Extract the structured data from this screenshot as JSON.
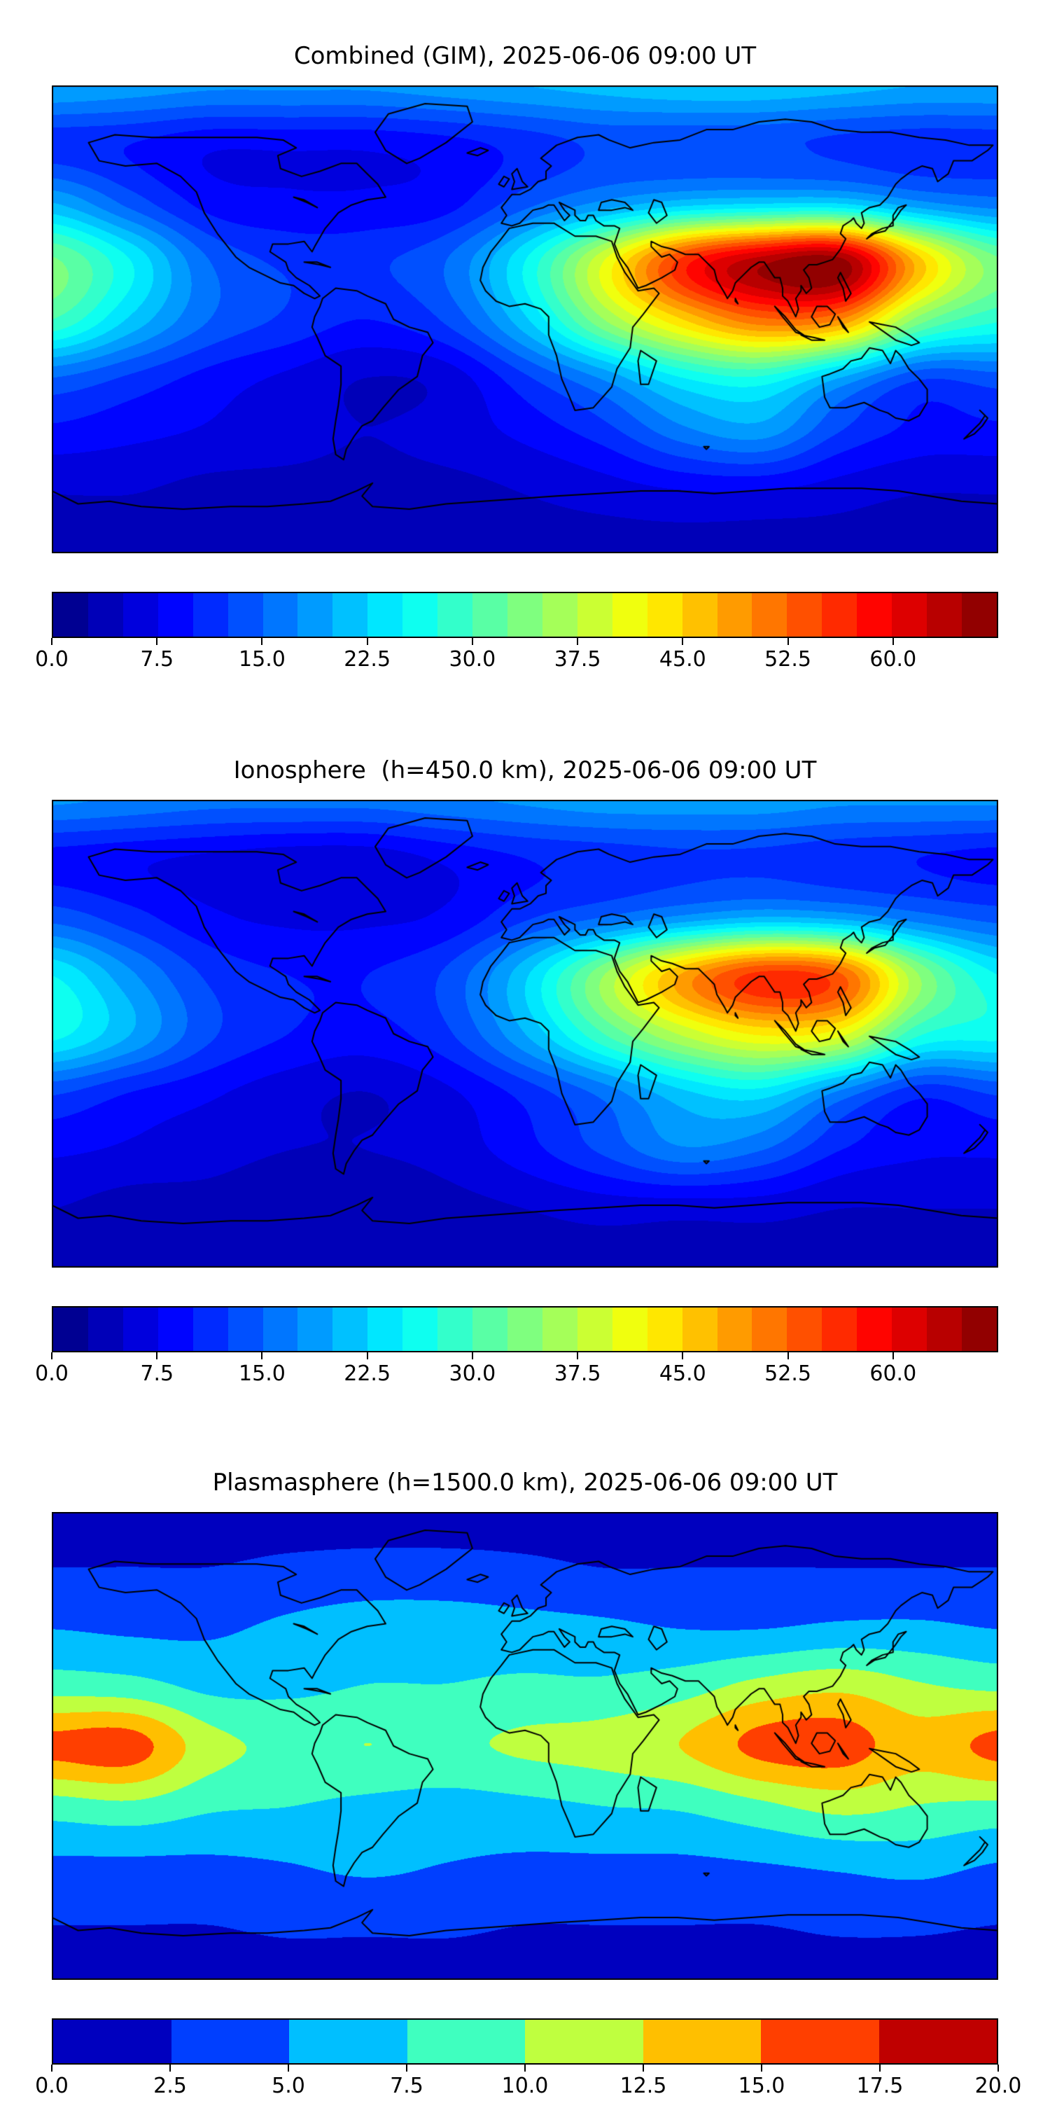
{
  "figure": {
    "background": "#ffffff",
    "colormap": "jet",
    "overlay": "coastlines"
  },
  "chart_data": [
    {
      "type": "heatmap",
      "title": "Combined (GIM), 2025-06-06 09:00 UT",
      "colormap": "jet",
      "extent": {
        "lon": [
          -180,
          180
        ],
        "lat": [
          -90,
          90
        ]
      },
      "levels": {
        "min": 0,
        "max": 67.5,
        "step": 2.5
      },
      "colorbar_ticks": [
        0.0,
        7.5,
        15.0,
        22.5,
        30.0,
        37.5,
        45.0,
        52.5,
        60.0
      ],
      "colorbar_tick_labels": [
        "0.0",
        "7.5",
        "15.0",
        "22.5",
        "30.0",
        "37.5",
        "45.0",
        "52.5",
        "60.0"
      ],
      "x_lon": [
        -180,
        -150,
        -120,
        -90,
        -60,
        -30,
        0,
        30,
        60,
        90,
        120,
        150,
        180
      ],
      "y_lat": [
        90,
        67.5,
        45,
        22.5,
        0,
        -22.5,
        -45,
        -67.5,
        -90
      ],
      "values": [
        [
          20,
          19,
          18,
          18,
          18,
          19,
          20,
          21,
          22,
          22,
          21,
          20,
          20
        ],
        [
          11,
          10,
          8,
          8,
          8,
          9,
          11,
          13,
          13,
          13,
          12,
          11,
          11
        ],
        [
          20,
          14,
          9,
          8,
          8,
          9,
          14,
          18,
          21,
          22,
          22,
          18,
          16
        ],
        [
          33,
          25,
          15,
          12,
          12,
          15,
          25,
          40,
          56,
          64,
          66,
          46,
          33
        ],
        [
          30,
          22,
          15,
          12,
          10,
          13,
          22,
          35,
          45,
          52,
          50,
          34,
          28
        ],
        [
          15,
          12,
          9,
          7,
          5,
          6,
          12,
          18,
          25,
          27,
          20,
          13,
          14
        ],
        [
          9,
          8,
          7,
          6,
          5,
          6,
          8,
          11,
          16,
          18,
          12,
          9,
          9
        ],
        [
          5,
          5,
          4,
          4,
          4,
          4,
          5,
          6,
          7,
          7,
          6,
          5,
          5
        ],
        [
          3,
          3,
          3,
          3,
          3,
          3,
          4,
          4,
          4,
          4,
          4,
          3,
          3
        ]
      ]
    },
    {
      "type": "heatmap",
      "title": "Ionosphere  (h=450.0 km), 2025-06-06 09:00 UT",
      "colormap": "jet",
      "extent": {
        "lon": [
          -180,
          180
        ],
        "lat": [
          -90,
          90
        ]
      },
      "levels": {
        "min": 0,
        "max": 67.5,
        "step": 2.5
      },
      "colorbar_ticks": [
        0.0,
        7.5,
        15.0,
        22.5,
        30.0,
        37.5,
        45.0,
        52.5,
        60.0
      ],
      "colorbar_tick_labels": [
        "0.0",
        "7.5",
        "15.0",
        "22.5",
        "30.0",
        "37.5",
        "45.0",
        "52.5",
        "60.0"
      ],
      "x_lon": [
        -180,
        -150,
        -120,
        -90,
        -60,
        -30,
        0,
        30,
        60,
        90,
        120,
        150,
        180
      ],
      "y_lat": [
        90,
        67.5,
        45,
        22.5,
        0,
        -22.5,
        -45,
        -67.5,
        -90
      ],
      "values": [
        [
          18,
          17,
          16,
          16,
          16,
          17,
          18,
          19,
          19,
          19,
          18,
          18,
          18
        ],
        [
          9,
          8,
          7,
          6,
          6,
          8,
          10,
          11,
          12,
          12,
          11,
          10,
          9
        ],
        [
          14,
          11,
          8,
          7,
          7,
          8,
          12,
          15,
          18,
          20,
          19,
          16,
          14
        ],
        [
          25,
          18,
          12,
          10,
          10,
          13,
          22,
          35,
          48,
          56,
          53,
          35,
          25
        ],
        [
          26,
          20,
          13,
          10,
          9,
          12,
          20,
          30,
          38,
          43,
          41,
          28,
          26
        ],
        [
          13,
          10,
          8,
          6,
          5,
          7,
          11,
          16,
          22,
          24,
          17,
          11,
          13
        ],
        [
          8,
          7,
          6,
          5,
          5,
          6,
          9,
          13,
          17,
          15,
          10,
          8,
          8
        ],
        [
          5,
          4,
          4,
          3,
          3,
          4,
          5,
          6,
          6,
          6,
          5,
          5,
          5
        ],
        [
          4,
          4,
          3,
          3,
          3,
          3,
          4,
          4,
          4,
          4,
          4,
          4,
          4
        ]
      ]
    },
    {
      "type": "heatmap",
      "title": "Plasmasphere (h=1500.0 km), 2025-06-06 09:00 UT",
      "colormap": "jet",
      "extent": {
        "lon": [
          -180,
          180
        ],
        "lat": [
          -90,
          90
        ]
      },
      "levels": {
        "min": 0,
        "max": 20,
        "step": 2.5
      },
      "colorbar_ticks": [
        0.0,
        2.5,
        5.0,
        7.5,
        10.0,
        12.5,
        15.0,
        17.5,
        20.0
      ],
      "colorbar_tick_labels": [
        "0.0",
        "2.5",
        "5.0",
        "7.5",
        "10.0",
        "12.5",
        "15.0",
        "17.5",
        "20.0"
      ],
      "x_lon": [
        -180,
        -150,
        -120,
        -90,
        -60,
        -30,
        0,
        30,
        60,
        90,
        120,
        150,
        180
      ],
      "y_lat": [
        90,
        67.5,
        45,
        22.5,
        0,
        -22.5,
        -45,
        -67.5,
        -90
      ],
      "values": [
        [
          1.5,
          1.5,
          1.5,
          1.5,
          1.5,
          1.5,
          1.5,
          1.5,
          1.5,
          1.5,
          1.5,
          1.5,
          1.5
        ],
        [
          2.6,
          2.6,
          2.6,
          3.1,
          3.4,
          3.4,
          3.1,
          2.6,
          2.6,
          2.6,
          2.6,
          2.6,
          2.6
        ],
        [
          5.0,
          4.6,
          4.6,
          5.6,
          6.4,
          6.4,
          6.0,
          5.6,
          5.0,
          5.0,
          5.6,
          5.6,
          5.0
        ],
        [
          9.0,
          8.6,
          7.0,
          7.0,
          7.6,
          7.6,
          8.0,
          8.0,
          9.0,
          11.0,
          12.0,
          10.4,
          9.6
        ],
        [
          15.8,
          16.2,
          11.0,
          9.6,
          10.0,
          9.6,
          10.4,
          11.0,
          12.6,
          15.8,
          16.2,
          13.6,
          15.8
        ],
        [
          9.0,
          9.6,
          8.0,
          7.6,
          7.0,
          6.6,
          7.0,
          7.6,
          8.0,
          9.6,
          11.0,
          10.0,
          9.6
        ],
        [
          4.6,
          4.6,
          4.6,
          5.0,
          5.6,
          5.0,
          4.6,
          4.6,
          4.6,
          5.0,
          5.6,
          6.0,
          5.0
        ],
        [
          2.6,
          2.6,
          2.6,
          3.0,
          3.0,
          3.0,
          2.6,
          2.6,
          2.6,
          2.6,
          3.0,
          3.0,
          2.6
        ],
        [
          1.6,
          1.6,
          1.6,
          1.6,
          1.6,
          1.6,
          1.6,
          1.6,
          1.6,
          1.6,
          1.6,
          1.6,
          1.6
        ]
      ]
    }
  ]
}
